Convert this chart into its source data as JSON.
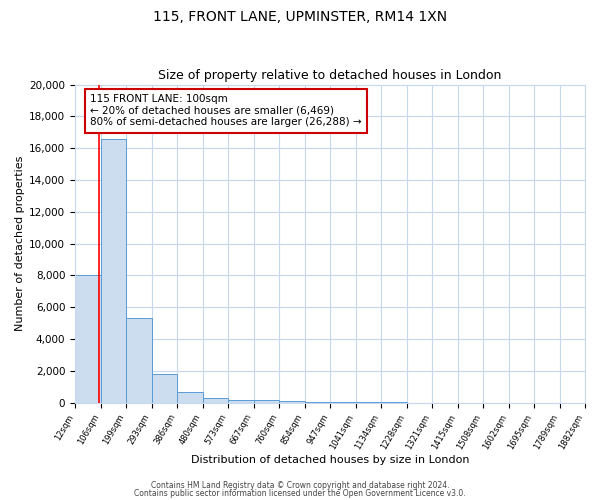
{
  "title1": "115, FRONT LANE, UPMINSTER, RM14 1XN",
  "title2": "Size of property relative to detached houses in London",
  "xlabel": "Distribution of detached houses by size in London",
  "ylabel": "Number of detached properties",
  "bin_edges": [
    12,
    106,
    199,
    293,
    386,
    480,
    573,
    667,
    760,
    854,
    947,
    1041,
    1134,
    1228,
    1321,
    1415,
    1508,
    1602,
    1695,
    1789,
    1882
  ],
  "bar_heights": [
    8050,
    16550,
    5300,
    1800,
    700,
    300,
    200,
    150,
    80,
    55,
    40,
    25,
    15,
    12,
    8,
    6,
    4,
    3,
    2,
    1
  ],
  "bar_color": "#ccddf0",
  "bar_edge_color": "#5b9bd5",
  "red_line_x": 100,
  "annotation_line1": "115 FRONT LANE: 100sqm",
  "annotation_line2": "← 20% of detached houses are smaller (6,469)",
  "annotation_line3": "80% of semi-detached houses are larger (26,288) →",
  "annotation_box_color": "#ffffff",
  "annotation_box_edge_color": "#cc0000",
  "ylim": [
    0,
    20000
  ],
  "yticks": [
    0,
    2000,
    4000,
    6000,
    8000,
    10000,
    12000,
    14000,
    16000,
    18000,
    20000
  ],
  "footer1": "Contains HM Land Registry data © Crown copyright and database right 2024.",
  "footer2": "Contains public sector information licensed under the Open Government Licence v3.0.",
  "bg_color": "#ffffff",
  "grid_color": "#c8d8ec"
}
